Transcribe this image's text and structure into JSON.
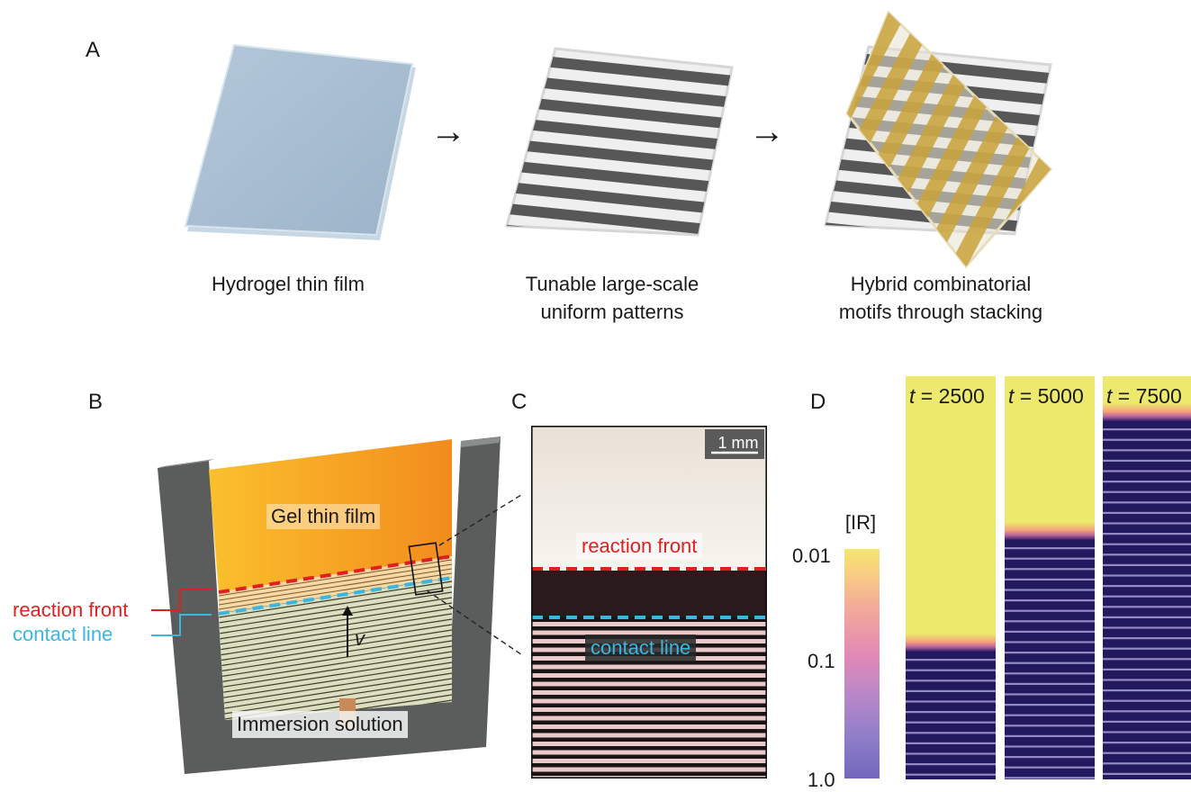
{
  "panels": {
    "a": {
      "letter": "A",
      "captions": [
        "Hydrogel thin film",
        "Tunable large-scale\nuniform patterns",
        "Hybrid combinatorial\nmotifs through stacking"
      ],
      "arrow_glyph": "→"
    },
    "b": {
      "letter": "B",
      "gel_label": "Gel thin film",
      "reaction_front": "reaction front",
      "contact_line": "contact line",
      "velocity": "v",
      "immersion": "Immersion solution"
    },
    "c": {
      "letter": "C",
      "scale_bar": "1 mm",
      "reaction_front": "reaction front",
      "contact_line": "contact line"
    },
    "d": {
      "letter": "D",
      "colorbar_title": "[IR]",
      "colorbar_ticks": [
        "0.01",
        "0.1",
        "1.0"
      ],
      "time_prefix": "t",
      "times": [
        "= 2500",
        "= 5000",
        "= 7500"
      ]
    }
  },
  "colors": {
    "reaction_front": "#e02020",
    "contact_line": "#3ab6e0",
    "pattern_dark": "#23195e",
    "pattern_light": "#ece96c",
    "gel_orange": "#f5a623",
    "hydrogel_blue": "#a9bfd3",
    "stack_gold": "#c9a23a"
  }
}
